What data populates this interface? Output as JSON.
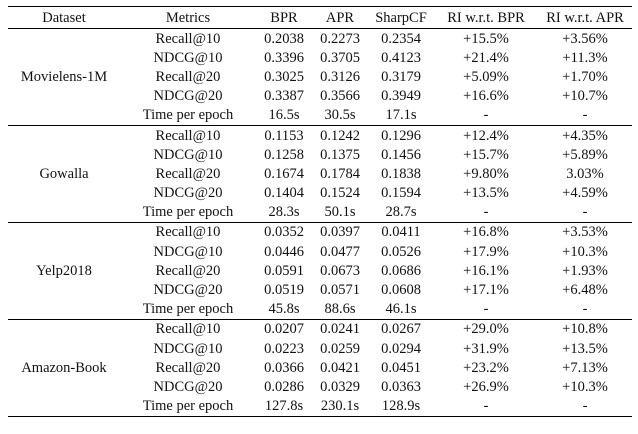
{
  "headers": [
    "Dataset",
    "Metrics",
    "BPR",
    "APR",
    "SharpCF",
    "RI w.r.t. BPR",
    "RI w.r.t. APR"
  ],
  "groups": [
    {
      "dataset": "Movielens-1M",
      "rows": [
        {
          "metric": "Recall@10",
          "bpr": "0.2038",
          "apr": "0.2273",
          "sharpcf": "0.2354",
          "ri_bpr": "+15.5%",
          "ri_apr": "+3.56%"
        },
        {
          "metric": "NDCG@10",
          "bpr": "0.3396",
          "apr": "0.3705",
          "sharpcf": "0.4123",
          "ri_bpr": "+21.4%",
          "ri_apr": "+11.3%"
        },
        {
          "metric": "Recall@20",
          "bpr": "0.3025",
          "apr": "0.3126",
          "sharpcf": "0.3179",
          "ri_bpr": "+5.09%",
          "ri_apr": "+1.70%"
        },
        {
          "metric": "NDCG@20",
          "bpr": "0.3387",
          "apr": "0.3566",
          "sharpcf": "0.3949",
          "ri_bpr": "+16.6%",
          "ri_apr": "+10.7%"
        },
        {
          "metric": "Time per epoch",
          "bpr": "16.5s",
          "apr": "30.5s",
          "sharpcf": "17.1s",
          "ri_bpr": "-",
          "ri_apr": "-"
        }
      ]
    },
    {
      "dataset": "Gowalla",
      "rows": [
        {
          "metric": "Recall@10",
          "bpr": "0.1153",
          "apr": "0.1242",
          "sharpcf": "0.1296",
          "ri_bpr": "+12.4%",
          "ri_apr": "+4.35%"
        },
        {
          "metric": "NDCG@10",
          "bpr": "0.1258",
          "apr": "0.1375",
          "sharpcf": "0.1456",
          "ri_bpr": "+15.7%",
          "ri_apr": "+5.89%"
        },
        {
          "metric": "Recall@20",
          "bpr": "0.1674",
          "apr": "0.1784",
          "sharpcf": "0.1838",
          "ri_bpr": "+9.80%",
          "ri_apr": "3.03%"
        },
        {
          "metric": "NDCG@20",
          "bpr": "0.1404",
          "apr": "0.1524",
          "sharpcf": "0.1594",
          "ri_bpr": "+13.5%",
          "ri_apr": "+4.59%"
        },
        {
          "metric": "Time per epoch",
          "bpr": "28.3s",
          "apr": "50.1s",
          "sharpcf": "28.7s",
          "ri_bpr": "-",
          "ri_apr": "-"
        }
      ]
    },
    {
      "dataset": "Yelp2018",
      "rows": [
        {
          "metric": "Recall@10",
          "bpr": "0.0352",
          "apr": "0.0397",
          "sharpcf": "0.0411",
          "ri_bpr": "+16.8%",
          "ri_apr": "+3.53%"
        },
        {
          "metric": "NDCG@10",
          "bpr": "0.0446",
          "apr": "0.0477",
          "sharpcf": "0.0526",
          "ri_bpr": "+17.9%",
          "ri_apr": "+10.3%"
        },
        {
          "metric": "Recall@20",
          "bpr": "0.0591",
          "apr": "0.0673",
          "sharpcf": "0.0686",
          "ri_bpr": "+16.1%",
          "ri_apr": "+1.93%"
        },
        {
          "metric": "NDCG@20",
          "bpr": "0.0519",
          "apr": "0.0571",
          "sharpcf": "0.0608",
          "ri_bpr": "+17.1%",
          "ri_apr": "+6.48%"
        },
        {
          "metric": "Time per epoch",
          "bpr": "45.8s",
          "apr": "88.6s",
          "sharpcf": "46.1s",
          "ri_bpr": "-",
          "ri_apr": "-"
        }
      ]
    },
    {
      "dataset": "Amazon-Book",
      "rows": [
        {
          "metric": "Recall@10",
          "bpr": "0.0207",
          "apr": "0.0241",
          "sharpcf": "0.0267",
          "ri_bpr": "+29.0%",
          "ri_apr": "+10.8%"
        },
        {
          "metric": "NDCG@10",
          "bpr": "0.0223",
          "apr": "0.0259",
          "sharpcf": "0.0294",
          "ri_bpr": "+31.9%",
          "ri_apr": "+13.5%"
        },
        {
          "metric": "Recall@20",
          "bpr": "0.0366",
          "apr": "0.0421",
          "sharpcf": "0.0451",
          "ri_bpr": "+23.2%",
          "ri_apr": "+7.13%"
        },
        {
          "metric": "NDCG@20",
          "bpr": "0.0286",
          "apr": "0.0329",
          "sharpcf": "0.0363",
          "ri_bpr": "+26.9%",
          "ri_apr": "+10.3%"
        },
        {
          "metric": "Time per epoch",
          "bpr": "127.8s",
          "apr": "230.1s",
          "sharpcf": "128.9s",
          "ri_bpr": "-",
          "ri_apr": "-"
        }
      ]
    }
  ]
}
